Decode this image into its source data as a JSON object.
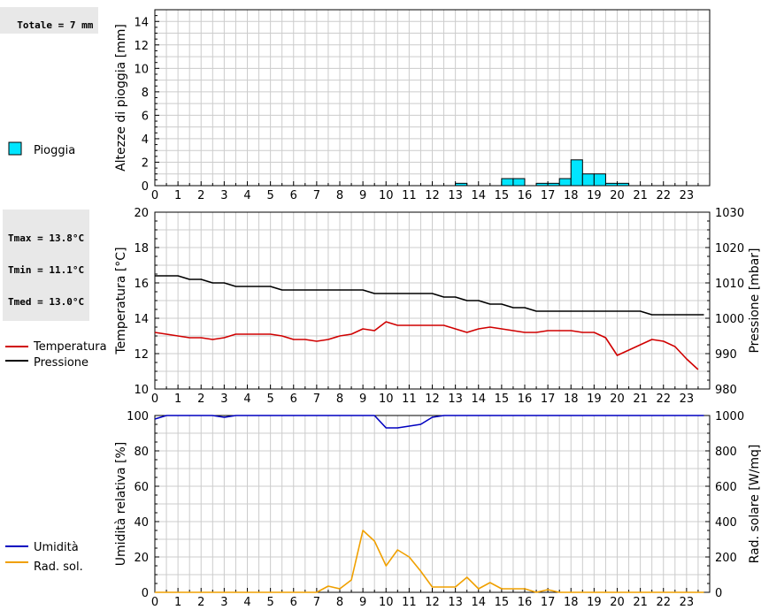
{
  "rain_total": "Totale = 7 mm",
  "temp_stats": [
    "Tmax = 13.8°C",
    "Tmin = 11.1°C",
    "Tmed = 13.0°C"
  ],
  "colors": {
    "rain": "#00e5ff",
    "temperature": "#d00000",
    "pressure": "#000000",
    "humidity": "#0000c0",
    "solar": "#f0a000",
    "grid": "#cccccc"
  },
  "legend": {
    "rain": "Pioggia",
    "temperature": "Temperatura",
    "pressure": "Pressione",
    "humidity": "Umidità",
    "solar": "Rad. sol."
  },
  "chart_data": [
    {
      "type": "bar",
      "ylabel": "Altezze di pioggia [mm]",
      "xlim": [
        0,
        24
      ],
      "ylim": [
        0,
        15
      ],
      "yticks": [
        0,
        2,
        4,
        6,
        8,
        10,
        12,
        14
      ],
      "xticks": [
        "0",
        "1",
        "2",
        "3",
        "4",
        "5",
        "6",
        "7",
        "8",
        "9",
        "10",
        "11",
        "12",
        "13",
        "14",
        "15",
        "16",
        "17",
        "18",
        "19",
        "20",
        "21",
        "22",
        "23"
      ],
      "grid": true,
      "series": [
        {
          "name": "Pioggia",
          "x": [
            13,
            15,
            15.5,
            16.5,
            17,
            17.5,
            18,
            18.5,
            19,
            19.5,
            20
          ],
          "values": [
            0.2,
            0.6,
            0.6,
            0.2,
            0.2,
            0.6,
            2.2,
            1.0,
            1.0,
            0.2,
            0.2
          ]
        }
      ]
    },
    {
      "type": "line",
      "ylabel": "Temperatura [°C]",
      "y2label": "Pressione [mbar]",
      "xlim": [
        0,
        24
      ],
      "ylim": [
        10,
        20
      ],
      "y2lim": [
        980,
        1030
      ],
      "yticks": [
        10,
        12,
        14,
        16,
        18,
        20
      ],
      "y2ticks": [
        980,
        990,
        1000,
        1010,
        1020,
        1030
      ],
      "xticks": [
        "0",
        "1",
        "2",
        "3",
        "4",
        "5",
        "6",
        "7",
        "8",
        "9",
        "10",
        "11",
        "12",
        "13",
        "14",
        "15",
        "16",
        "17",
        "18",
        "19",
        "20",
        "21",
        "22",
        "23"
      ],
      "grid": true,
      "series": [
        {
          "name": "Temperatura",
          "axis": "left",
          "x": [
            0,
            0.5,
            1,
            1.5,
            2,
            2.5,
            3,
            3.5,
            4,
            4.5,
            5,
            5.5,
            6,
            6.5,
            7,
            7.5,
            8,
            8.5,
            9,
            9.5,
            10,
            10.5,
            11,
            11.5,
            12,
            12.5,
            13,
            13.5,
            14,
            14.5,
            15,
            15.5,
            16,
            16.5,
            17,
            17.5,
            18,
            18.5,
            19,
            19.5,
            20,
            20.5,
            21,
            21.5,
            22,
            22.5,
            23,
            23.5
          ],
          "values": [
            13.2,
            13.1,
            13.0,
            12.9,
            12.9,
            12.8,
            12.9,
            13.1,
            13.1,
            13.1,
            13.1,
            13.0,
            12.8,
            12.8,
            12.7,
            12.8,
            13.0,
            13.1,
            13.4,
            13.3,
            13.8,
            13.6,
            13.6,
            13.6,
            13.6,
            13.6,
            13.4,
            13.2,
            13.4,
            13.5,
            13.4,
            13.3,
            13.2,
            13.2,
            13.3,
            13.3,
            13.3,
            13.2,
            13.2,
            12.9,
            11.9,
            12.2,
            12.5,
            12.8,
            12.7,
            12.4,
            11.7,
            11.1
          ]
        },
        {
          "name": "Pressione",
          "axis": "right",
          "x": [
            0,
            1,
            1.5,
            2,
            2.5,
            3,
            3.5,
            4,
            5,
            5.5,
            6,
            9,
            9.5,
            10,
            12,
            12.5,
            13,
            13.5,
            14,
            14.5,
            15,
            15.5,
            16,
            16.5,
            17,
            21,
            21.5,
            23.75
          ],
          "values": [
            1012,
            1012,
            1011,
            1011,
            1010,
            1010,
            1009,
            1009,
            1009,
            1008,
            1008,
            1008,
            1007,
            1007,
            1007,
            1006,
            1006,
            1005,
            1005,
            1004,
            1004,
            1003,
            1003,
            1002,
            1002,
            1002,
            1001,
            1001
          ]
        }
      ]
    },
    {
      "type": "line",
      "ylabel": "Umidità relativa [%]",
      "y2label": "Rad. solare [W/mq]",
      "xlim": [
        0,
        24
      ],
      "ylim": [
        0,
        100
      ],
      "y2lim": [
        0,
        1000
      ],
      "yticks": [
        0,
        20,
        40,
        60,
        80,
        100
      ],
      "y2ticks": [
        0,
        200,
        400,
        600,
        800,
        1000
      ],
      "xticks": [
        "0",
        "1",
        "2",
        "3",
        "4",
        "5",
        "6",
        "7",
        "8",
        "9",
        "10",
        "11",
        "12",
        "13",
        "14",
        "15",
        "16",
        "17",
        "18",
        "19",
        "20",
        "21",
        "22",
        "23"
      ],
      "grid": true,
      "series": [
        {
          "name": "Umidità",
          "axis": "left",
          "x": [
            0,
            0.5,
            1,
            2.5,
            3,
            3.5,
            4,
            9,
            9.5,
            10,
            10.5,
            11,
            11.5,
            12,
            12.5,
            13,
            23.75
          ],
          "values": [
            98,
            100,
            100,
            100,
            99,
            100,
            100,
            100,
            100,
            93,
            93,
            94,
            95,
            99,
            100,
            100,
            100
          ]
        },
        {
          "name": "Rad. sol.",
          "axis": "right",
          "x": [
            0,
            7,
            7.5,
            8,
            8.5,
            9,
            9.5,
            10,
            10.5,
            11,
            11.5,
            12,
            12.5,
            13,
            13.5,
            14,
            14.5,
            15,
            15.5,
            16,
            16.5,
            17,
            17.5,
            18,
            23.75
          ],
          "values": [
            0,
            0,
            35,
            20,
            70,
            350,
            290,
            150,
            240,
            200,
            120,
            30,
            30,
            30,
            85,
            20,
            55,
            20,
            20,
            20,
            0,
            15,
            0,
            0,
            0
          ]
        }
      ]
    }
  ]
}
